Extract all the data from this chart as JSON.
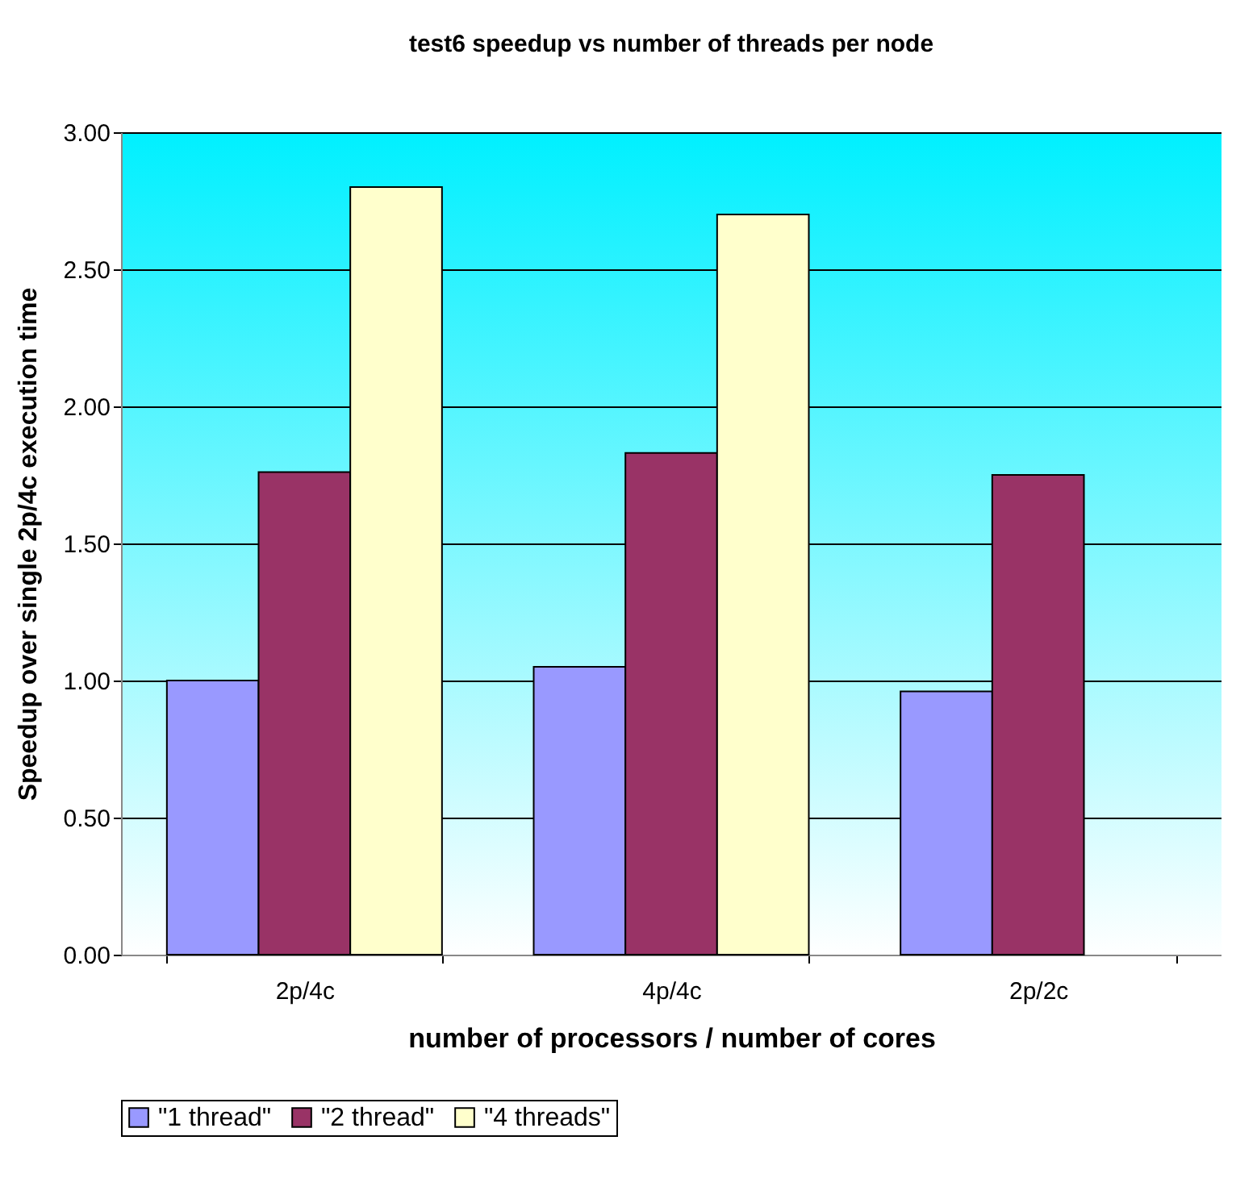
{
  "chart_data": {
    "type": "bar",
    "title": "test6 speedup vs number of threads per node",
    "xlabel": "number of processors / number of cores",
    "ylabel": "Speedup over single 2p/4c execution time",
    "categories": [
      "2p/4c",
      "4p/4c",
      "2p/2c"
    ],
    "series": [
      {
        "name": "\"1 thread\"",
        "color": "#9999ff",
        "values": [
          1.0,
          1.05,
          0.96
        ]
      },
      {
        "name": "\"2 thread\"",
        "color": "#993366",
        "values": [
          1.76,
          1.83,
          1.75
        ]
      },
      {
        "name": "\"4 threads\"",
        "color": "#ffffcc",
        "values": [
          2.8,
          2.7,
          null
        ]
      }
    ],
    "ylim": [
      0,
      3
    ],
    "yticks": [
      {
        "value": 0,
        "label": "0.00"
      },
      {
        "value": 0.5,
        "label": "0.50"
      },
      {
        "value": 1,
        "label": "1.00"
      },
      {
        "value": 1.5,
        "label": "1.50"
      },
      {
        "value": 2,
        "label": "2.00"
      },
      {
        "value": 2.5,
        "label": "2.50"
      },
      {
        "value": 3,
        "label": "3.00"
      }
    ],
    "grid": "y",
    "legend": "bottom"
  }
}
